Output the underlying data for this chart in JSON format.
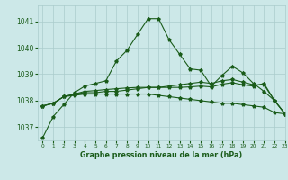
{
  "title": "Graphe pression niveau de la mer (hPa)",
  "background_color": "#cce8e8",
  "grid_color": "#aacccc",
  "line_color": "#1a5c1a",
  "xlim": [
    -0.5,
    23
  ],
  "ylim": [
    1036.5,
    1041.6
  ],
  "yticks": [
    1037,
    1038,
    1039,
    1040,
    1041
  ],
  "xticks": [
    0,
    1,
    2,
    3,
    4,
    5,
    6,
    7,
    8,
    9,
    10,
    11,
    12,
    13,
    14,
    15,
    16,
    17,
    18,
    19,
    20,
    21,
    22,
    23
  ],
  "series1": [
    1036.6,
    1037.4,
    1037.85,
    1038.3,
    1038.55,
    1038.65,
    1038.75,
    1039.5,
    1039.9,
    1040.5,
    1041.1,
    1041.1,
    1040.3,
    1039.75,
    1039.2,
    1039.15,
    1038.55,
    1038.95,
    1039.3,
    1039.05,
    1038.65,
    1038.35,
    1038.0,
    1037.5
  ],
  "series2": [
    1037.8,
    1037.9,
    1038.15,
    1038.25,
    1038.3,
    1038.3,
    1038.35,
    1038.35,
    1038.4,
    1038.45,
    1038.5,
    1038.5,
    1038.55,
    1038.6,
    1038.65,
    1038.7,
    1038.65,
    1038.75,
    1038.8,
    1038.7,
    1038.6,
    1038.6,
    1038.0,
    1037.5
  ],
  "series3": [
    1037.8,
    1037.9,
    1038.15,
    1038.2,
    1038.25,
    1038.25,
    1038.25,
    1038.25,
    1038.25,
    1038.25,
    1038.25,
    1038.2,
    1038.15,
    1038.1,
    1038.05,
    1038.0,
    1037.95,
    1037.9,
    1037.9,
    1037.85,
    1037.8,
    1037.75,
    1037.55,
    1037.5
  ],
  "series4": [
    1037.8,
    1037.9,
    1038.15,
    1038.25,
    1038.35,
    1038.38,
    1038.42,
    1038.45,
    1038.48,
    1038.5,
    1038.5,
    1038.5,
    1038.5,
    1038.5,
    1038.52,
    1038.55,
    1038.52,
    1038.62,
    1038.68,
    1038.6,
    1038.55,
    1038.65,
    1038.0,
    1037.5
  ]
}
